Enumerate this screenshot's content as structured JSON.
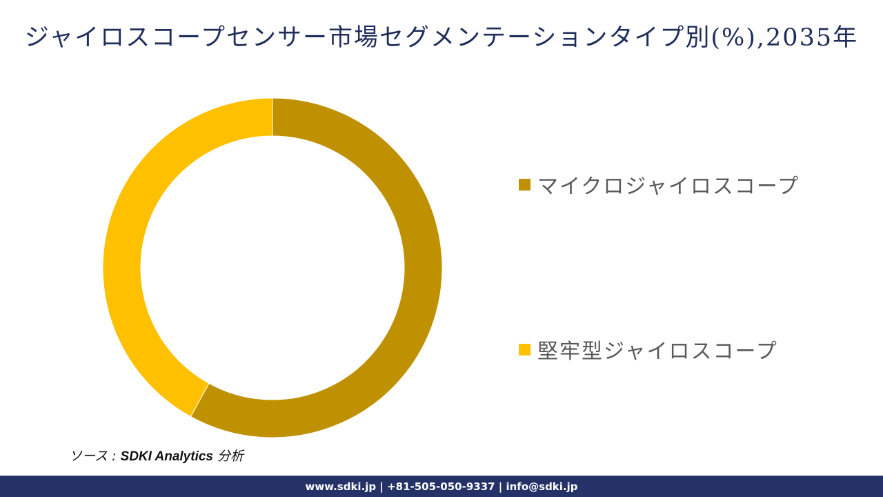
{
  "title": "ジャイロスコープセンサー市場セグメンテーションタイプ別(%),2035年",
  "chart_data": {
    "type": "pie",
    "subtype": "donut",
    "title": "ジャイロスコープセンサー市場セグメンテーションタイプ別(%),2035年",
    "categories": [
      "マイクロジャイロスコープ",
      "堅牢型ジャイロスコープ"
    ],
    "values": [
      58,
      42
    ],
    "unit": "%",
    "colors": [
      "#bf9000",
      "#ffc000"
    ],
    "start_angle_deg": 0,
    "direction": "clockwise",
    "legend_position": "right",
    "data_labels": false
  },
  "legend": {
    "items": [
      {
        "label": "マイクロジャイロスコープ",
        "color": "#bf9000"
      },
      {
        "label": "堅牢型ジャイロスコープ",
        "color": "#ffc000"
      }
    ]
  },
  "source": {
    "prefix": "ソース : ",
    "name": "SDKI Analytics",
    "suffix": " 分析"
  },
  "footer": {
    "text": "www.sdki.jp | +81-505-050-9337 | info@sdki.jp"
  },
  "colors": {
    "title": "#1f2d5c",
    "footer_bg": "#253268",
    "legend_text": "#595959"
  }
}
